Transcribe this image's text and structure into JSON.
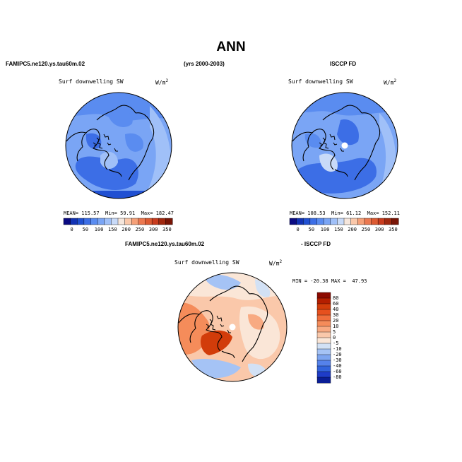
{
  "title": "ANN",
  "header": {
    "left": "FAMIPC5.ne120.ys.tau60m.02",
    "center": "(yrs 2000-2003)",
    "right": "ISCCP FD"
  },
  "panels": {
    "model": {
      "variable": "Surf downwelling SW",
      "units": "W/m",
      "units_exp": "2",
      "stats": {
        "mean_label": "MEAN=",
        "mean": "115.57",
        "min_label": "Min=",
        "min": "59.91",
        "max_label": "Max=",
        "max": "182.47"
      }
    },
    "obs": {
      "variable": "Surf downwelling SW",
      "units": "W/m",
      "units_exp": "2",
      "stats": {
        "mean_label": "MEAN=",
        "mean": "108.53",
        "min_label": "Min=",
        "min": "61.12",
        "max_label": "Max=",
        "max": "152.11"
      }
    },
    "diff": {
      "title_left": "FAMIPC5.ne120.ys.tau60m.02",
      "title_right": "- ISCCP FD",
      "variable": "Surf downwelling SW",
      "units": "W/m",
      "units_exp": "2",
      "stats": {
        "min_label": "MIN =",
        "min": "-20.38",
        "max_label": "MAX =",
        "max": "47.93"
      }
    }
  },
  "colorbar_abs": {
    "labels": [
      "0",
      "50",
      "100",
      "150",
      "200",
      "250",
      "300",
      "350"
    ],
    "colors": [
      "#0a0a82",
      "#1232b4",
      "#2050d2",
      "#3c6ee6",
      "#5a8cf0",
      "#7aa5f5",
      "#a0c0f8",
      "#c8daf8",
      "#f5e6dc",
      "#fac8aa",
      "#f5a078",
      "#eb7850",
      "#dc5a32",
      "#c83c1e",
      "#a0280f",
      "#781405"
    ]
  },
  "colorbar_diff": {
    "labels": [
      "80",
      "60",
      "40",
      "30",
      "20",
      "10",
      "5",
      "0",
      "-5",
      "-10",
      "-20",
      "-30",
      "-40",
      "-60",
      "-80"
    ],
    "colors": [
      "#8c0a00",
      "#b41e00",
      "#d23c0a",
      "#e6501e",
      "#f06e3c",
      "#f58c5a",
      "#f8aa82",
      "#fac8aa",
      "#fae6d7",
      "#d2e1f5",
      "#a5c3f5",
      "#7da5f0",
      "#5582eb",
      "#3264dc",
      "#1e3cc8",
      "#0a1e96"
    ]
  },
  "colors": {
    "ocean_blue": "#5a8cf0",
    "land_blue": "#7aa5f5",
    "deep_blue": "#3c6ee6",
    "light_blue": "#a0c0f8",
    "diff_warm": "#f58c5a",
    "diff_light": "#fac8aa",
    "diff_cool": "#a5c3f5"
  }
}
